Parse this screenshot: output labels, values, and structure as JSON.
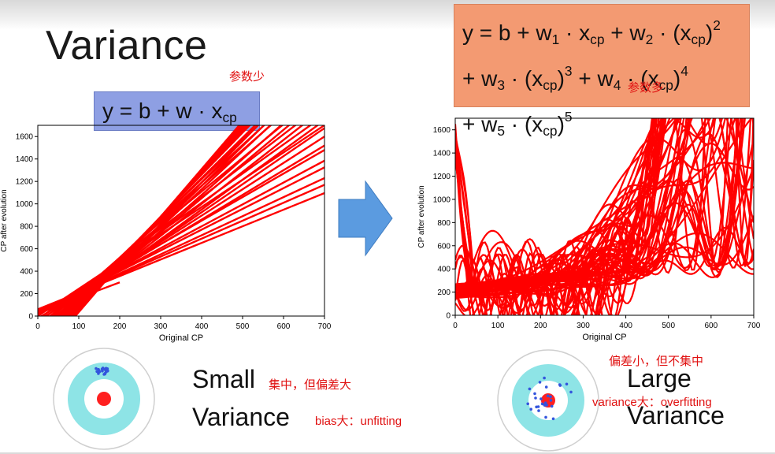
{
  "slide": {
    "title": "Variance",
    "note_few_params": "参数少",
    "note_many_params": "参数多",
    "formula_simple": {
      "lhs": "y = b + w · x",
      "sub": "cp"
    },
    "formula_complex": {
      "l1a": "y = b + w",
      "l1s1": "1",
      "l1b": " · x",
      "l1s2": "cp",
      "l1c": " + w",
      "l1s3": "2",
      "l1d": " · (x",
      "l1s4": "cp",
      "l1e": ")",
      "l1p": "2",
      "l2a": "+ w",
      "l2s1": "3",
      "l2b": " · (x",
      "l2s2": "cp",
      "l2c": ")",
      "l2p1": "3",
      "l2d": " + w",
      "l2s3": "4",
      "l2e": " · (x",
      "l2s4": "cp",
      "l2f": ")",
      "l2p2": "4",
      "l3a": "+ w",
      "l3s1": "5",
      "l3b": " · (x",
      "l3s2": "cp",
      "l3c": ")",
      "l3p": "5"
    },
    "left_label_1": "Small",
    "left_label_2": "Variance",
    "left_note_1": "集中，但偏差大",
    "left_note_2": "bias大：unfitting",
    "right_label_1": "Large",
    "right_label_2": "Variance",
    "right_note_1": "偏差小，但不集中",
    "right_note_2": "variance大：overfitting"
  },
  "chart_data": [
    {
      "type": "line",
      "xlabel": "Original CP",
      "ylabel": "CP after evolution",
      "xlim": [
        0,
        700
      ],
      "ylim": [
        0,
        1700
      ],
      "xticks": [
        "0",
        "100",
        "200",
        "300",
        "400",
        "500",
        "600",
        "700"
      ],
      "yticks": [
        "0",
        "200",
        "400",
        "600",
        "800",
        "1000",
        "1200",
        "1400",
        "1600"
      ],
      "line_color": "#ff0000",
      "series_form": "y = b + w*x",
      "series_params": [
        [
          0,
          2.43
        ],
        [
          -30,
          2.6
        ],
        [
          -60,
          2.8
        ],
        [
          -90,
          3.0
        ],
        [
          -120,
          3.2
        ],
        [
          -150,
          3.35
        ],
        [
          -180,
          3.5
        ],
        [
          -210,
          3.6
        ],
        [
          -240,
          3.75
        ],
        [
          -270,
          3.85
        ],
        [
          -300,
          3.95
        ],
        [
          -330,
          4.05
        ],
        [
          -360,
          4.15
        ],
        [
          -390,
          4.25
        ],
        [
          10,
          2.1
        ],
        [
          20,
          1.95
        ],
        [
          30,
          1.85
        ],
        [
          40,
          1.7
        ],
        [
          50,
          1.6
        ],
        [
          60,
          1.48
        ],
        [
          -20,
          2.2
        ],
        [
          -45,
          2.35
        ],
        [
          -75,
          2.5
        ],
        [
          -110,
          2.65
        ],
        [
          -140,
          2.85
        ],
        [
          -170,
          3.05
        ],
        [
          -200,
          3.2
        ],
        [
          -230,
          3.4
        ],
        [
          -260,
          3.55
        ],
        [
          -290,
          3.7
        ]
      ]
    },
    {
      "type": "line",
      "xlabel": "Original CP",
      "ylabel": "CP after evolution",
      "xlim": [
        0,
        700
      ],
      "ylim": [
        0,
        1700
      ],
      "xticks": [
        "0",
        "100",
        "200",
        "300",
        "400",
        "500",
        "600",
        "700"
      ],
      "yticks": [
        "0",
        "200",
        "400",
        "600",
        "800",
        "1000",
        "1200",
        "1400",
        "1600"
      ],
      "line_color": "#ff0000",
      "series_form": "y = b + w1*x + w2*x^2 + w3*x^3 + w4*x^4 + w5*x^5",
      "series_count": 60
    }
  ],
  "targets": {
    "ring_colors": {
      "outer": "#8ee4e6",
      "middle": "#ffffff",
      "bull": "#ff2020",
      "dots": "#3355dd"
    }
  }
}
